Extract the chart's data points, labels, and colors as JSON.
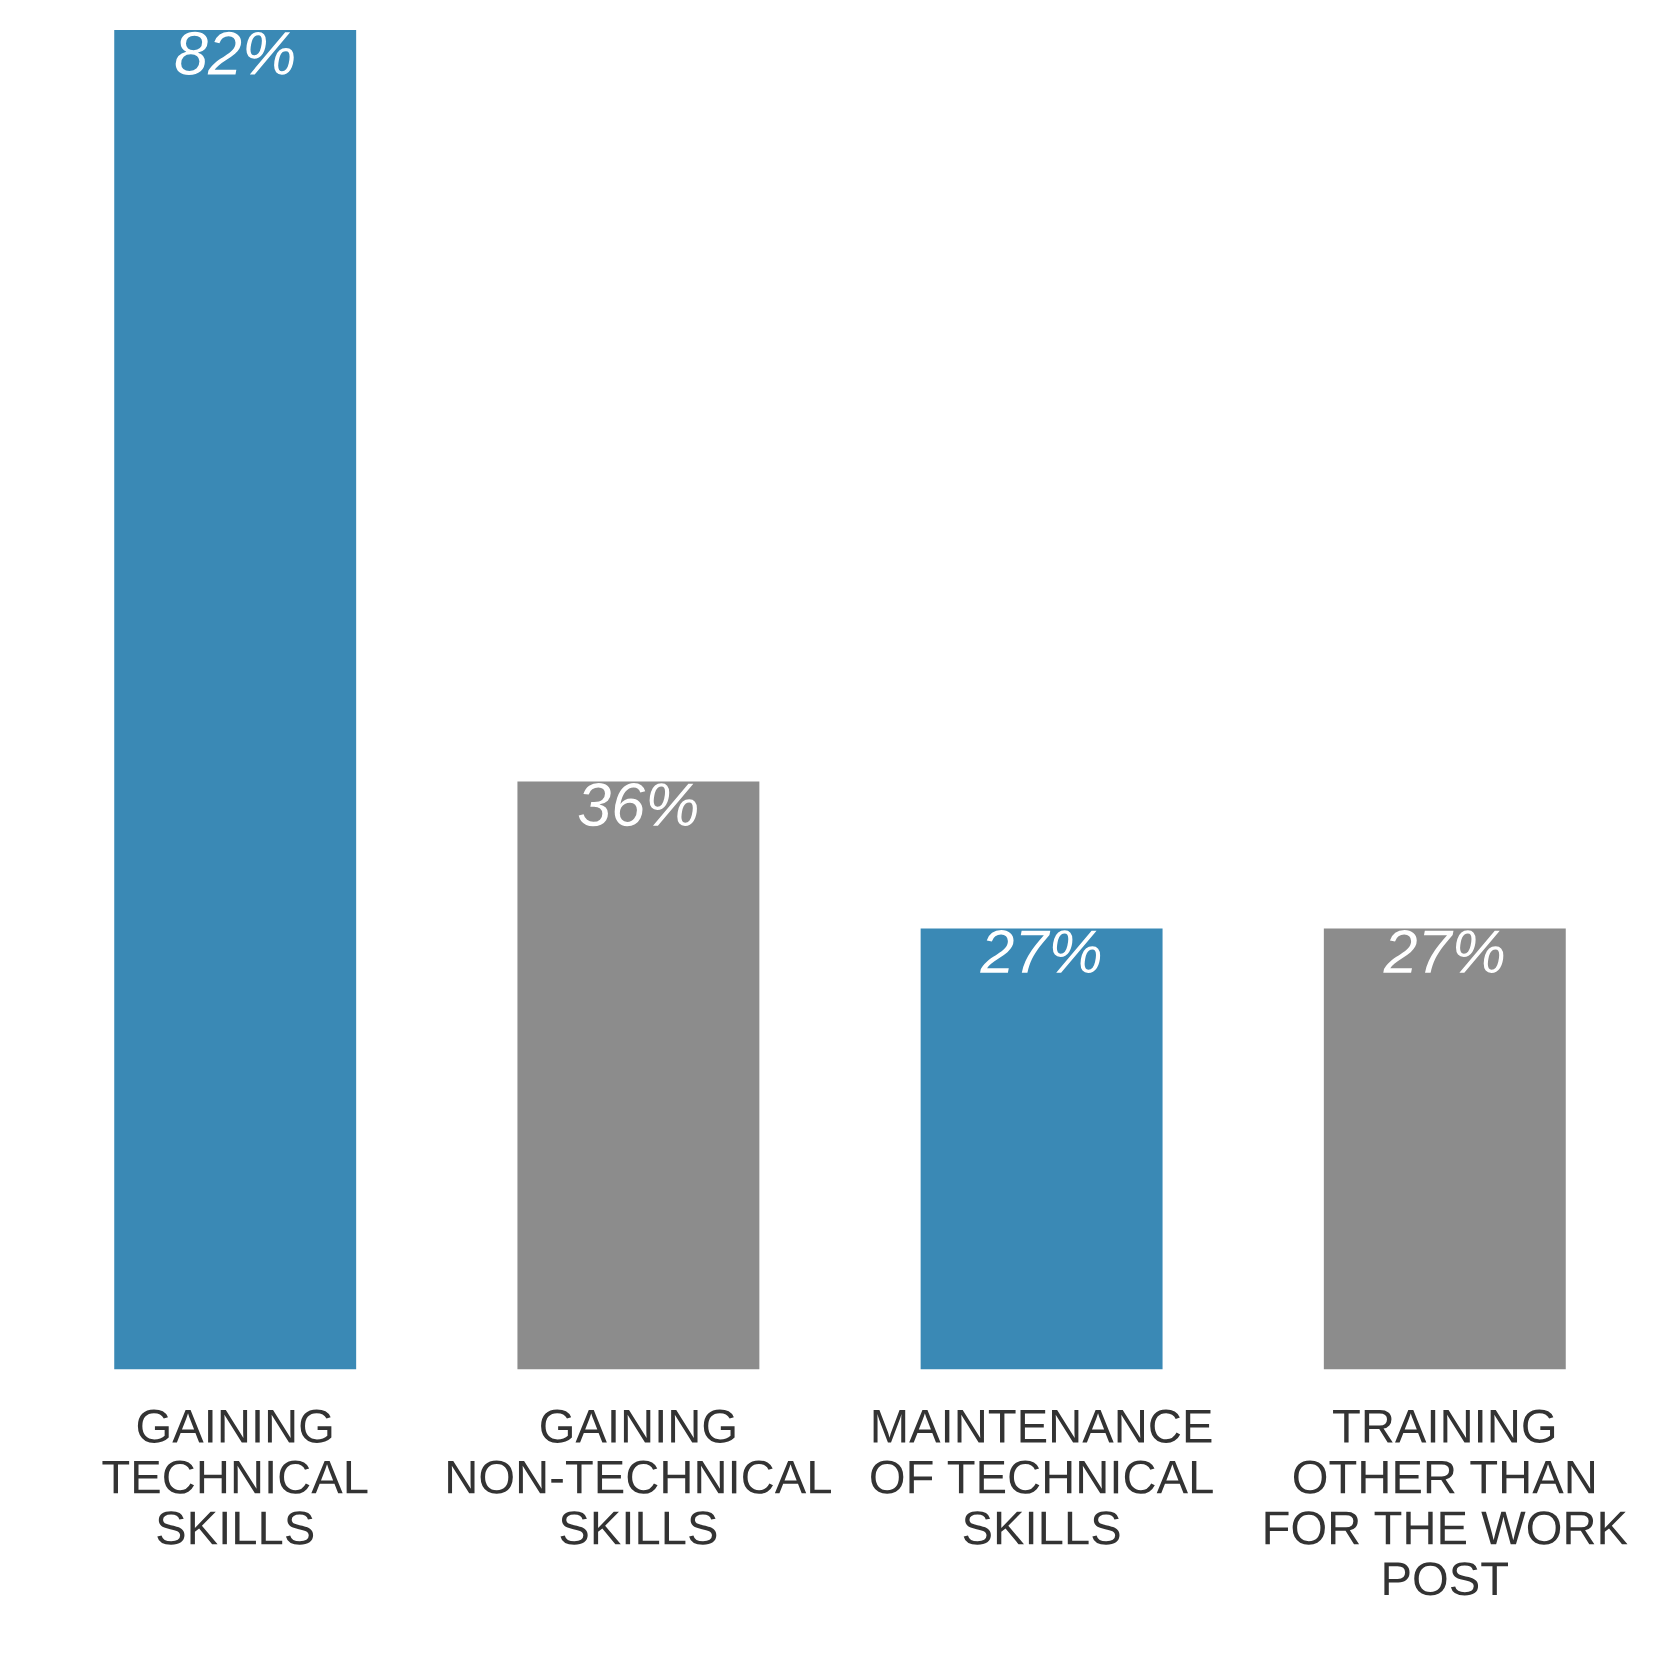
{
  "chart_data": {
    "type": "bar",
    "categories": [
      "GAINING\nTECHNICAL\nSKILLS",
      "GAINING\nNON-TECHNICAL\nSKILLS",
      "MAINTENANCE\nOF TECHNICAL\nSKILLS",
      "TRAINING\nOTHER THAN\nFOR THE WORK\nPOST"
    ],
    "values": [
      82,
      36,
      27,
      27
    ],
    "colors": [
      "#3a89b5",
      "#8c8c8c",
      "#3a89b5",
      "#8c8c8c"
    ],
    "value_labels": [
      "82%",
      "36%",
      "27%",
      "27%"
    ],
    "grid": false,
    "legend": false
  }
}
